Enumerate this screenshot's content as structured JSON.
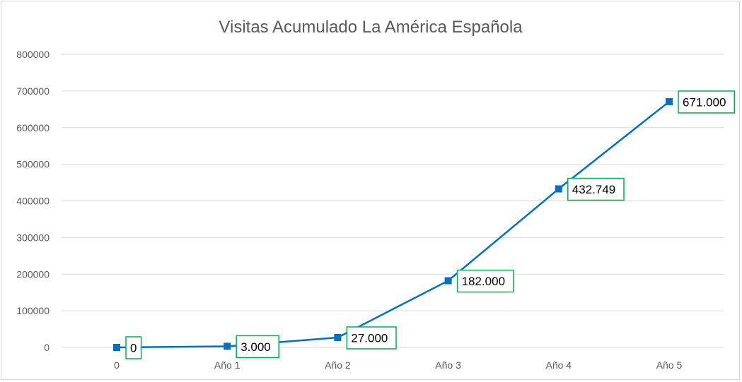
{
  "chart_data": {
    "type": "line",
    "title": "Visitas Acumulado La América Española",
    "categories": [
      "0",
      "Año 1",
      "Año 2",
      "Año 3",
      "Año 4",
      "Año 5"
    ],
    "series": [
      {
        "values": [
          0,
          3000,
          27000,
          182000,
          432749,
          671000
        ],
        "labels": [
          "0",
          "3.000",
          "27.000",
          "182.000",
          "432.749",
          "671.000"
        ]
      }
    ],
    "yticks": [
      "0",
      "100000",
      "200000",
      "300000",
      "400000",
      "500000",
      "600000",
      "700000",
      "800000"
    ],
    "ylim": [
      0,
      800000
    ],
    "grid": true,
    "legend": "none",
    "colors": {
      "line": "#0070c0",
      "label_border": "#00b050",
      "grid": "#d9d9d9",
      "text": "#595959"
    }
  }
}
